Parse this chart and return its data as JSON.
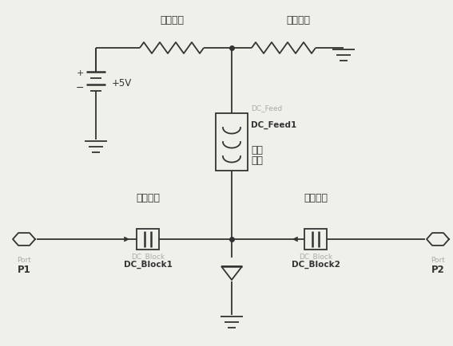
{
  "bg_color": "#f0f0eb",
  "line_color": "#333333",
  "text_color": "#333333",
  "gray_text": "#aaaaaa",
  "labels": {
    "fixed_resistor": "固定电阻",
    "thermistor": "热敏电阻",
    "voltage": "+5V",
    "dc_feed_gray": "DC_Feed",
    "dc_feed_black": "DC_Feed1",
    "choke_line1": "扼流",
    "choke_line2": "电感",
    "coupling_cap1": "耦合电容",
    "coupling_cap2": "耦合电容",
    "dc_block_gray1": "DC_Block",
    "dc_block_black1": "DC_Block1",
    "dc_block_gray2": "DC_Block",
    "dc_block_black2": "DC_Block2",
    "port1_gray": "Port",
    "port1_black": "P1",
    "port2_gray": "Port",
    "port2_black": "P2"
  }
}
